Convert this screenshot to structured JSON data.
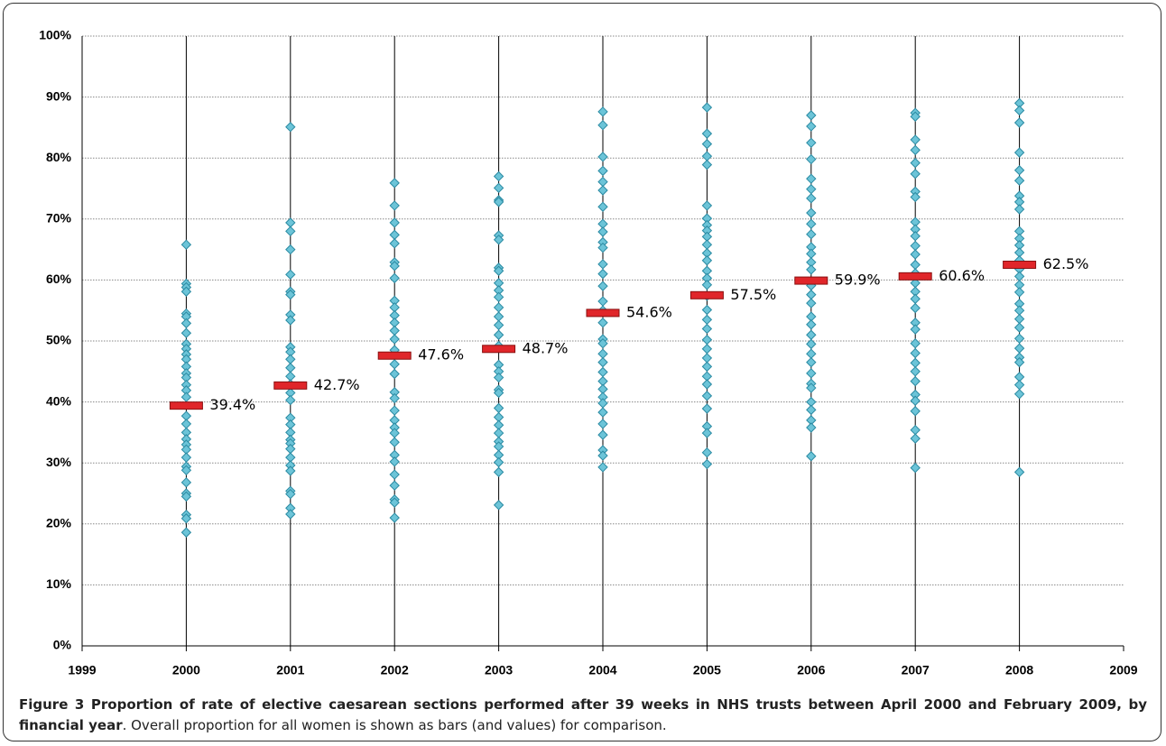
{
  "chart_data": {
    "type": "scatter",
    "xlim": [
      1999,
      2009
    ],
    "xticks": [
      1999,
      2000,
      2001,
      2002,
      2003,
      2004,
      2005,
      2006,
      2007,
      2008,
      2009
    ],
    "ylim": [
      0,
      100
    ],
    "yticks": [
      {
        "value": 0,
        "label": "0%"
      },
      {
        "value": 10,
        "label": "10%"
      },
      {
        "value": 20,
        "label": "20%"
      },
      {
        "value": 30,
        "label": "30%"
      },
      {
        "value": 40,
        "label": "40%"
      },
      {
        "value": 50,
        "label": "50%"
      },
      {
        "value": 60,
        "label": "60%"
      },
      {
        "value": 70,
        "label": "70%"
      },
      {
        "value": 80,
        "label": "80%"
      },
      {
        "value": 90,
        "label": "90%"
      },
      {
        "value": 100,
        "label": "100%"
      }
    ],
    "grid": true,
    "series": [
      {
        "color": "#6cc4d8",
        "marker": "diamond",
        "x": [
          2000,
          2000,
          2000,
          2000,
          2000,
          2000,
          2000,
          2000,
          2000,
          2000,
          2000,
          2000,
          2000,
          2000,
          2000,
          2000,
          2000,
          2000,
          2000,
          2000,
          2000,
          2000,
          2000,
          2000,
          2000,
          2000,
          2000,
          2000,
          2000,
          2000,
          2000,
          2000,
          2000,
          2001,
          2001,
          2001,
          2001,
          2001,
          2001,
          2001,
          2001,
          2001,
          2001,
          2001,
          2001,
          2001,
          2001,
          2001,
          2001,
          2001,
          2001,
          2001,
          2001,
          2001,
          2001,
          2001,
          2001,
          2001,
          2001,
          2001,
          2001,
          2001,
          2001,
          2002,
          2002,
          2002,
          2002,
          2002,
          2002,
          2002,
          2002,
          2002,
          2002,
          2002,
          2002,
          2002,
          2002,
          2002,
          2002,
          2002,
          2002,
          2002,
          2002,
          2002,
          2002,
          2002,
          2002,
          2002,
          2002,
          2002,
          2002,
          2002,
          2002,
          2002,
          2003,
          2003,
          2003,
          2003,
          2003,
          2003,
          2003,
          2003,
          2003,
          2003,
          2003,
          2003,
          2003,
          2003,
          2003,
          2003,
          2003,
          2003,
          2003,
          2003,
          2003,
          2003,
          2003,
          2003,
          2003,
          2003,
          2003,
          2003,
          2003,
          2003,
          2003,
          2004,
          2004,
          2004,
          2004,
          2004,
          2004,
          2004,
          2004,
          2004,
          2004,
          2004,
          2004,
          2004,
          2004,
          2004,
          2004,
          2004,
          2004,
          2004,
          2004,
          2004,
          2004,
          2004,
          2004,
          2004,
          2004,
          2004,
          2004,
          2004,
          2004,
          2004,
          2004,
          2005,
          2005,
          2005,
          2005,
          2005,
          2005,
          2005,
          2005,
          2005,
          2005,
          2005,
          2005,
          2005,
          2005,
          2005,
          2005,
          2005,
          2005,
          2005,
          2005,
          2005,
          2005,
          2005,
          2005,
          2005,
          2005,
          2005,
          2005,
          2005,
          2005,
          2005,
          2005,
          2006,
          2006,
          2006,
          2006,
          2006,
          2006,
          2006,
          2006,
          2006,
          2006,
          2006,
          2006,
          2006,
          2006,
          2006,
          2006,
          2006,
          2006,
          2006,
          2006,
          2006,
          2006,
          2006,
          2006,
          2006,
          2006,
          2006,
          2006,
          2006,
          2006,
          2006,
          2007,
          2007,
          2007,
          2007,
          2007,
          2007,
          2007,
          2007,
          2007,
          2007,
          2007,
          2007,
          2007,
          2007,
          2007,
          2007,
          2007,
          2007,
          2007,
          2007,
          2007,
          2007,
          2007,
          2007,
          2007,
          2007,
          2007,
          2007,
          2007,
          2007,
          2007,
          2007,
          2008,
          2008,
          2008,
          2008,
          2008,
          2008,
          2008,
          2008,
          2008,
          2008,
          2008,
          2008,
          2008,
          2008,
          2008,
          2008,
          2008,
          2008,
          2008,
          2008,
          2008,
          2008,
          2008,
          2008,
          2008,
          2008,
          2008,
          2008,
          2008,
          2008
        ],
        "values": [
          65.8,
          59.4,
          58.8,
          58.1,
          54.5,
          54,
          52.9,
          51.3,
          49.5,
          48.7,
          47.8,
          47,
          45.8,
          44.7,
          44,
          42.8,
          41.9,
          40.8,
          37.7,
          36.4,
          35,
          33.9,
          33,
          32.2,
          30.9,
          29.4,
          28.8,
          26.8,
          25,
          24.5,
          21.5,
          20.9,
          18.6,
          85.1,
          69.4,
          68,
          65,
          60.9,
          58.1,
          57.6,
          54.3,
          53.4,
          49,
          48.2,
          47,
          45.6,
          44.2,
          42.9,
          41.5,
          40.3,
          37.4,
          36.3,
          35,
          33.8,
          33.2,
          32.3,
          30.9,
          29.6,
          28.7,
          25.4,
          24.9,
          22.6,
          21.6,
          75.9,
          72.2,
          69.4,
          67.4,
          66,
          62.9,
          62.3,
          60.3,
          56.6,
          55.5,
          54.2,
          53,
          51.7,
          50.3,
          48.5,
          46.2,
          44.6,
          41.6,
          40.6,
          38.6,
          37,
          35.8,
          34.9,
          33.4,
          31.3,
          30.2,
          28.1,
          26.3,
          24,
          23.5,
          21,
          77,
          75.1,
          73.1,
          72.8,
          67.3,
          66.6,
          62,
          61.5,
          59.5,
          58.3,
          57.2,
          55.5,
          54,
          52.6,
          51,
          49.2,
          46.1,
          45,
          44,
          42,
          41.5,
          39,
          37.5,
          36.2,
          34.9,
          33.5,
          32.7,
          31.3,
          30.1,
          28.5,
          23.1,
          87.6,
          85.4,
          80.2,
          77.9,
          76.1,
          74.7,
          72,
          69.2,
          67.9,
          66.2,
          65.3,
          62.6,
          61,
          59,
          56.5,
          55,
          53,
          50.3,
          49.6,
          47.9,
          46.5,
          44.9,
          43.4,
          42.1,
          40.8,
          39.8,
          38.3,
          36.4,
          34.6,
          32.1,
          31.2,
          29.3,
          88.3,
          84,
          82.3,
          80.3,
          78.9,
          72.2,
          70.1,
          69,
          68.1,
          67.1,
          65.8,
          64.4,
          63.2,
          61.5,
          60.3,
          59.2,
          57.4,
          55.1,
          53.5,
          52,
          50.2,
          48.7,
          47.2,
          45.8,
          44.2,
          42.9,
          41,
          38.9,
          36,
          34.9,
          31.7,
          29.8,
          87,
          85.2,
          82.5,
          79.8,
          76.6,
          74.9,
          73.4,
          71,
          69.2,
          67.5,
          65.4,
          64.3,
          62.9,
          61.7,
          59.1,
          57.6,
          56.2,
          54,
          52.7,
          51,
          49.5,
          47.9,
          46.5,
          44.7,
          43,
          42.3,
          40,
          38.7,
          37,
          35.8,
          31.1,
          87.4,
          86.8,
          83,
          81.3,
          79.2,
          77.4,
          74.5,
          73.6,
          69.5,
          68.3,
          67.2,
          65.6,
          64.2,
          62.5,
          61.1,
          59.5,
          58.1,
          56.9,
          55.4,
          53,
          51.9,
          49.6,
          48,
          46.4,
          45,
          43.4,
          41.2,
          40.2,
          38.5,
          35.4,
          34,
          29.2,
          89,
          87.8,
          85.8,
          80.9,
          78,
          76.3,
          73.8,
          72.8,
          71.6,
          68,
          66.8,
          65.7,
          64.5,
          63.2,
          61.8,
          60.6,
          59.2,
          58,
          56.1,
          55,
          53.6,
          52.2,
          50.4,
          48.8,
          47.3,
          46.5,
          44.1,
          42.8,
          41.3,
          28.5
        ]
      },
      {
        "color": "#e0262a",
        "marker": "bar",
        "x": [
          2000,
          2001,
          2002,
          2003,
          2004,
          2005,
          2006,
          2007,
          2008
        ],
        "values": [
          39.4,
          42.7,
          47.6,
          48.7,
          54.6,
          57.5,
          59.9,
          60.6,
          62.5
        ],
        "value_labels": [
          "39.4%",
          "42.7%",
          "47.6%",
          "48.7%",
          "54.6%",
          "57.5%",
          "59.9%",
          "60.6%",
          "62.5%"
        ]
      }
    ]
  },
  "caption_title": "Figure 3 Proportion of rate of elective caesarean sections performed after 39 weeks in NHS trusts between April 2000 and February 2009, by financial year",
  "caption_text": ". Overall proportion for all women is shown as bars (and values) for comparison."
}
